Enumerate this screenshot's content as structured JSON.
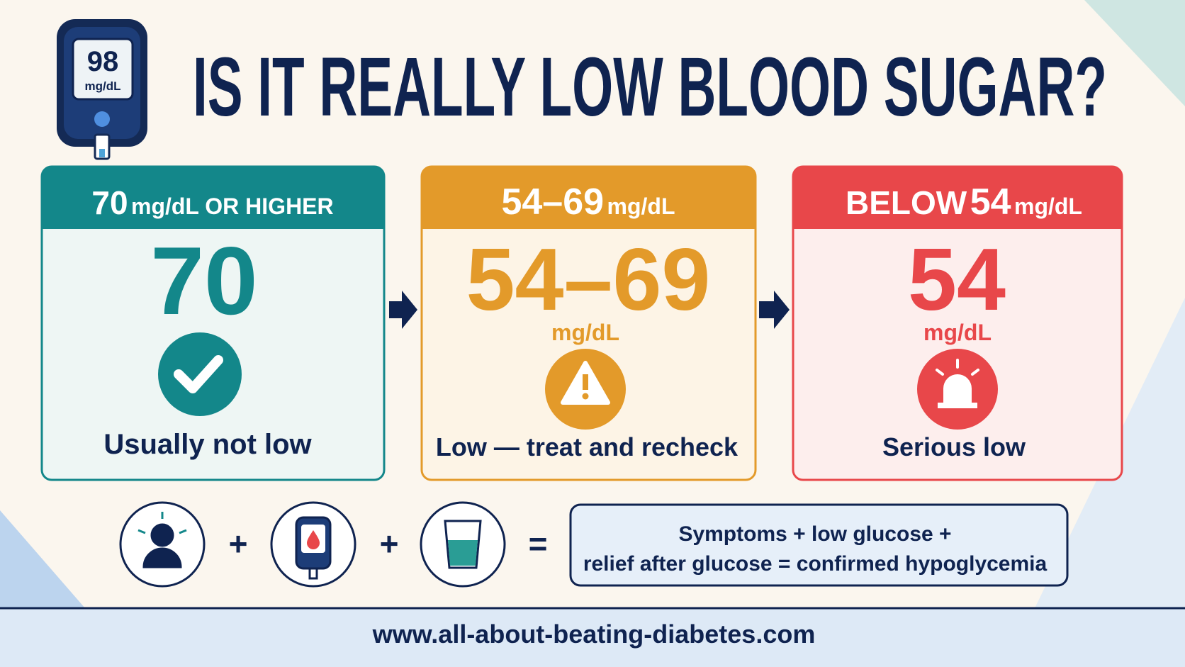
{
  "meter": {
    "reading": "98",
    "unit": "mg/dL"
  },
  "title": "IS IT REALLY LOW BLOOD SUGAR?",
  "cards": [
    {
      "header_number": "70",
      "header_unit": "mg/dL OR HIGHER",
      "value": "70",
      "caption": "Usually not low"
    },
    {
      "header_number": "54–69",
      "header_unit": "mg/dL",
      "value": "54–69",
      "unit": "mg/dL",
      "caption": "Low — treat and recheck"
    },
    {
      "header_prefix": "BELOW",
      "header_number": "54",
      "header_unit": "mg/dL",
      "value": "54",
      "unit": "mg/dL",
      "caption": "Serious low"
    }
  ],
  "formula": {
    "lines": [
      "Symptoms + low glucose +",
      "relief after glucose = confirmed hypoglycemia"
    ]
  },
  "footer": {
    "url": "www.all-about-beating-diabetes.com"
  }
}
